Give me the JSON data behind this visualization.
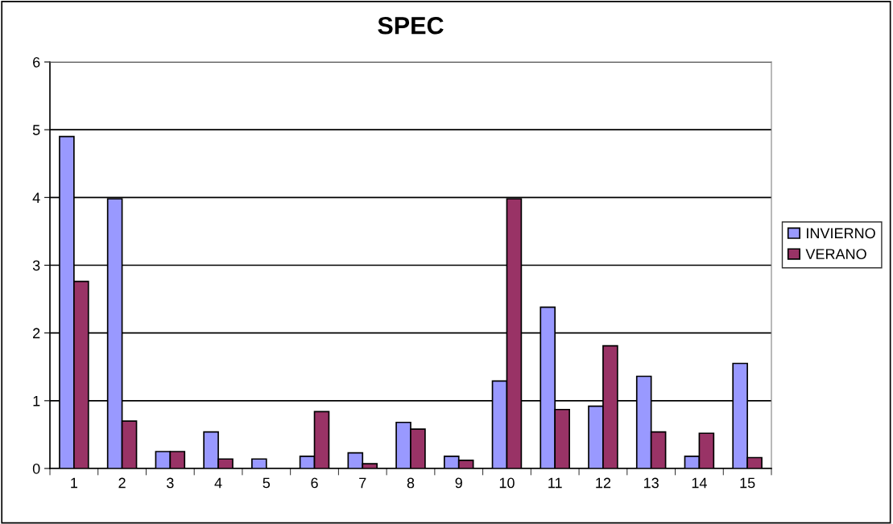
{
  "chart_data": {
    "type": "bar",
    "title": "SPEC",
    "categories": [
      "1",
      "2",
      "3",
      "4",
      "5",
      "6",
      "7",
      "8",
      "9",
      "10",
      "11",
      "12",
      "13",
      "14",
      "15"
    ],
    "series": [
      {
        "name": "INVIERNO",
        "color": "#9999ff",
        "values": [
          4.9,
          3.98,
          0.25,
          0.54,
          0.14,
          0.18,
          0.23,
          0.68,
          0.18,
          1.29,
          2.38,
          0.92,
          1.36,
          0.18,
          1.55
        ]
      },
      {
        "name": "VERANO",
        "color": "#993366",
        "values": [
          2.76,
          0.7,
          0.25,
          0.14,
          0,
          0.84,
          0.07,
          0.58,
          0.12,
          3.98,
          0.87,
          1.81,
          0.54,
          0.52,
          0.16
        ]
      }
    ],
    "ylim": [
      0,
      6
    ],
    "yticks": [
      0,
      1,
      2,
      3,
      4,
      5,
      6
    ],
    "grid": "y",
    "legend": "right"
  }
}
